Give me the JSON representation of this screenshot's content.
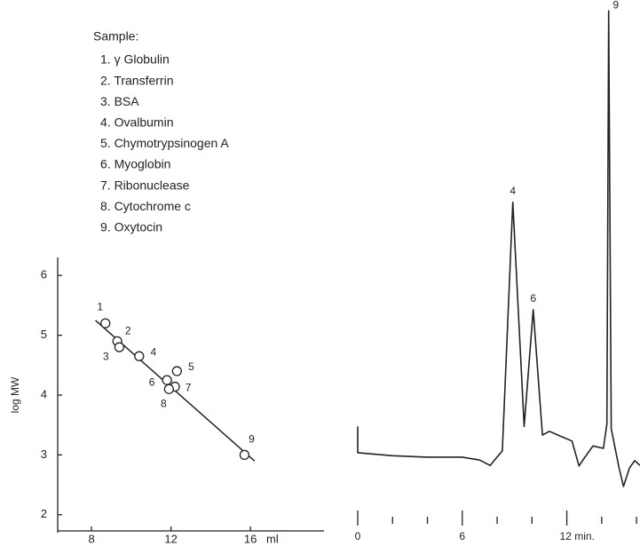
{
  "chart_data": [
    {
      "type": "scatter",
      "legend": {
        "title": "Sample:",
        "items": [
          "1. γ Globulin",
          "2. Transferrin",
          "3. BSA",
          "4. Ovalbumin",
          "5. Chymotrypsinogen A",
          "6. Myoglobin",
          "7. Ribonuclease",
          "8. Cytochrome c",
          "9. Oxytocin"
        ]
      },
      "xlabel": "ml",
      "ylabel": "log MW",
      "x": [
        8.7,
        9.3,
        9.4,
        10.4,
        12.3,
        11.8,
        12.2,
        11.9,
        15.7
      ],
      "values": [
        5.2,
        4.9,
        4.8,
        4.65,
        4.4,
        4.25,
        4.14,
        4.1,
        3.0
      ],
      "labels": [
        "1",
        "2",
        "3",
        "4",
        "5",
        "6",
        "7",
        "8",
        "9"
      ],
      "fit": {
        "x": [
          8.2,
          16.2
        ],
        "y": [
          5.25,
          2.9
        ]
      },
      "xlim": [
        6.3,
        19.7
      ],
      "ylim": [
        1.7,
        6.3
      ],
      "xticks": [
        8,
        12,
        16
      ],
      "yticks": [
        2,
        3,
        4,
        5,
        6
      ],
      "color": "#222222"
    },
    {
      "type": "line",
      "x": [
        0,
        0,
        2,
        4,
        6,
        7,
        7.6,
        7.9,
        8.3,
        8.9,
        9.55,
        10.07,
        10.6,
        11.0,
        11.5,
        12.3,
        12.7,
        13.0,
        13.5,
        14.1,
        14.3,
        14.4,
        14.55,
        15.0,
        15.25,
        15.6,
        15.9,
        16.2
      ],
      "values": [
        14.5,
        9.1,
        8.5,
        8.2,
        8.2,
        7.6,
        6.5,
        7.8,
        9.5,
        60.4,
        14.5,
        38.4,
        12.7,
        13.5,
        12.7,
        11.5,
        6.4,
        8,
        10.5,
        10,
        15,
        99.6,
        14,
        6,
        2.2,
        6,
        7.5,
        6.5
      ],
      "labels": [
        null,
        null,
        null,
        null,
        null,
        null,
        null,
        null,
        null,
        "4",
        null,
        "6",
        null,
        null,
        null,
        null,
        null,
        null,
        null,
        null,
        null,
        "9",
        null,
        null,
        null,
        null,
        null,
        null
      ],
      "xlim": [
        0,
        16.2
      ],
      "ylim": [
        0,
        100
      ],
      "xticks": [
        0,
        6,
        {
          "value": 12,
          "label": "12 min."
        }
      ],
      "xminor": [
        2,
        4,
        8,
        10,
        14,
        16
      ],
      "color": "#222222"
    }
  ]
}
